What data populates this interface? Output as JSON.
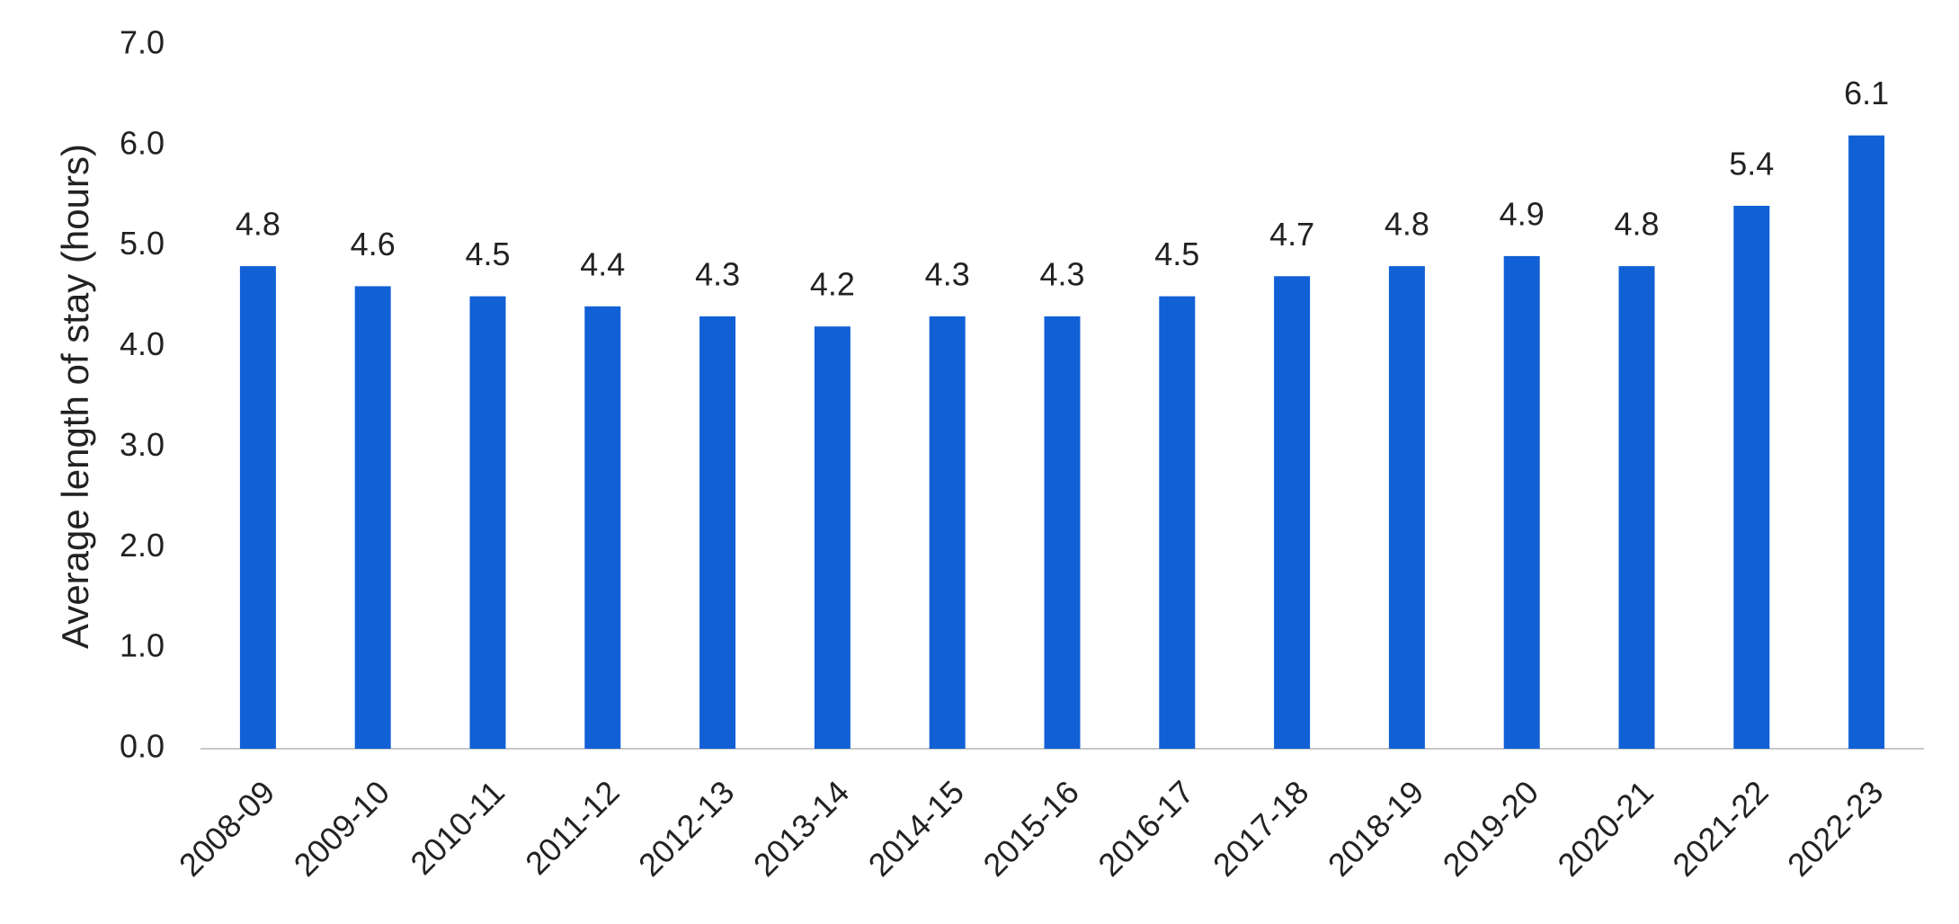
{
  "chart_data": {
    "type": "bar",
    "y_label": "Average length of stay (hours)",
    "categories": [
      "2008-09",
      "2009-10",
      "2010-11",
      "2011-12",
      "2012-13",
      "2013-14",
      "2014-15",
      "2015-16",
      "2016-17",
      "2017-18",
      "2018-19",
      "2019-20",
      "2020-21",
      "2021-22",
      "2022-23"
    ],
    "values": [
      4.8,
      4.6,
      4.5,
      4.4,
      4.3,
      4.2,
      4.3,
      4.3,
      4.5,
      4.7,
      4.8,
      4.9,
      4.8,
      5.4,
      6.1
    ],
    "color": "#1160d6",
    "ylim": [
      0,
      7
    ],
    "yticks": [
      {
        "value": 0,
        "label": "0.0"
      },
      {
        "value": 1,
        "label": "1.0"
      },
      {
        "value": 2,
        "label": "2.0"
      },
      {
        "value": 3,
        "label": "3.0"
      },
      {
        "value": 4,
        "label": "4.0"
      },
      {
        "value": 5,
        "label": "5.0"
      },
      {
        "value": 6,
        "label": "6.0"
      },
      {
        "value": 7,
        "label": "7.0"
      }
    ],
    "grid": false
  }
}
